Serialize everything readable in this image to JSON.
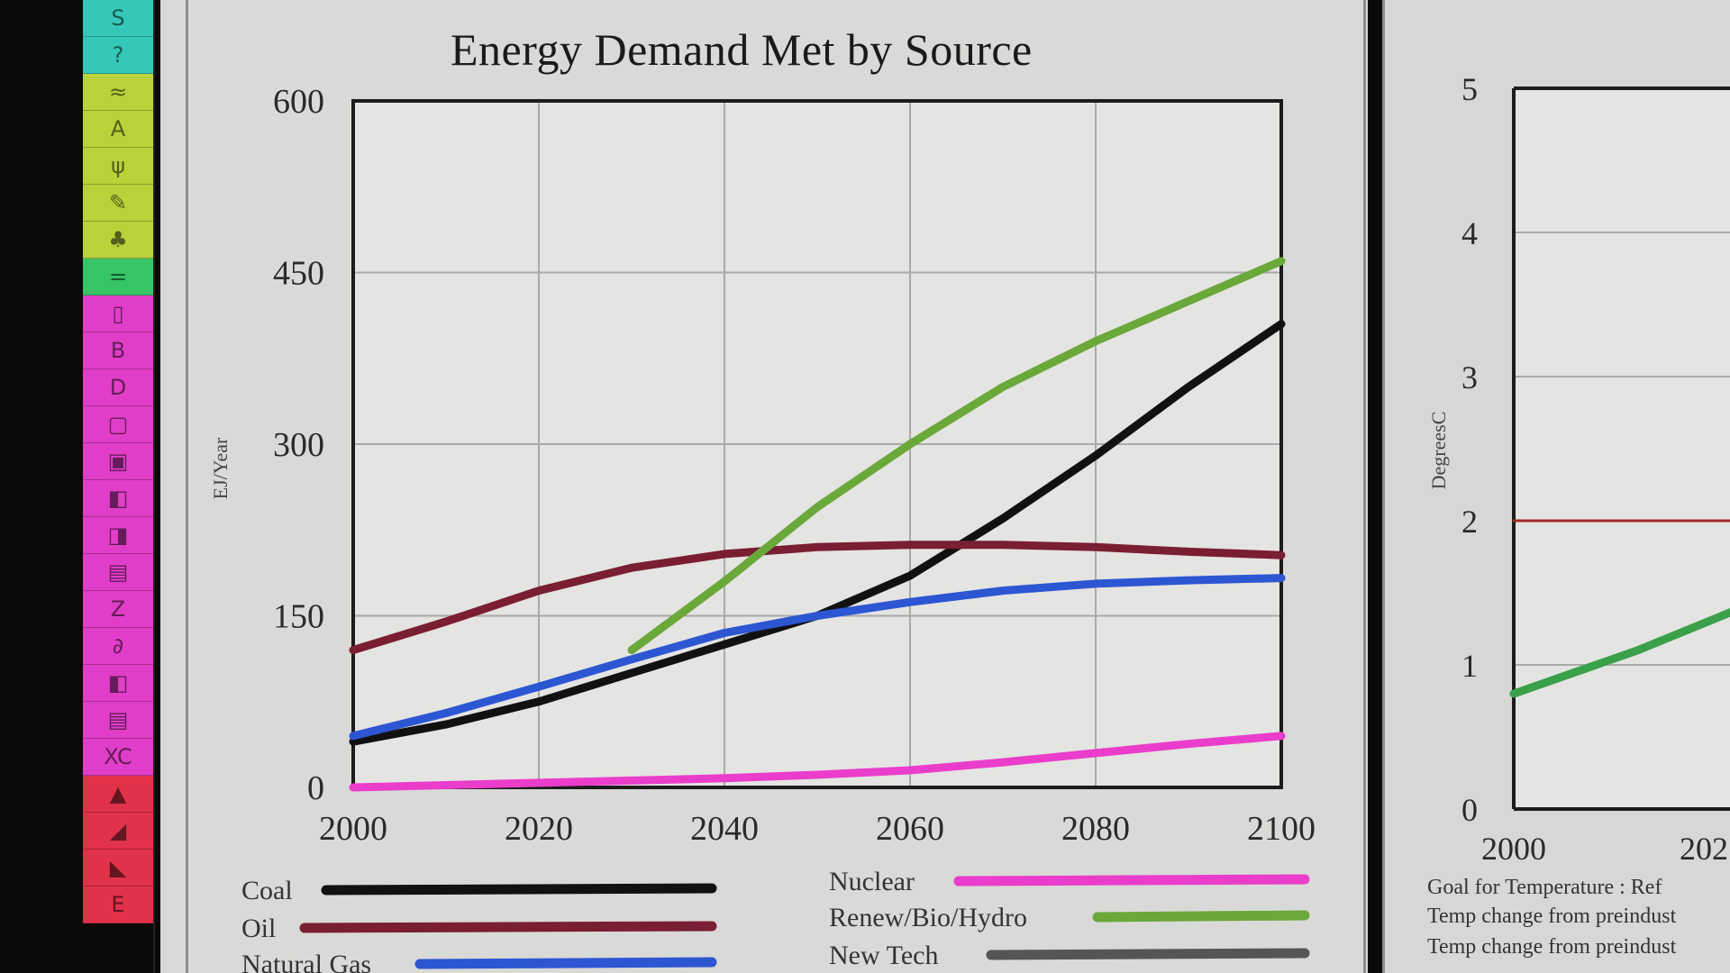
{
  "toolbar": {
    "groups": [
      {
        "color": "#35c8b8",
        "icons": [
          "S",
          "?"
        ]
      },
      {
        "color": "#b8d23a",
        "icons": [
          "≈",
          "A",
          "ψ",
          "✎",
          "♣"
        ]
      },
      {
        "color": "#36c466",
        "icons": [
          "="
        ]
      },
      {
        "color": "#e03ec8",
        "icons": [
          "▯",
          "B",
          "D",
          "▢",
          "▣",
          "◧",
          "◨",
          "▤",
          "Z",
          "∂",
          "◧",
          "▤",
          "XC"
        ]
      },
      {
        "color": "#e2324a",
        "icons": [
          "▲",
          "◢",
          "◣",
          "E"
        ]
      }
    ]
  },
  "chart_data": [
    {
      "type": "line",
      "title": "Energy Demand Met by Source",
      "ylabel": "EJ/Year",
      "xlabel": "",
      "xlim": [
        2000,
        2100
      ],
      "ylim": [
        0,
        600
      ],
      "x_ticks": [
        "2000",
        "2020",
        "2040",
        "2060",
        "2080",
        "2100"
      ],
      "y_ticks": [
        "0",
        "150",
        "300",
        "450",
        "600"
      ],
      "grid": true,
      "legend_position": "bottom",
      "x": [
        2000,
        2010,
        2020,
        2030,
        2040,
        2050,
        2060,
        2070,
        2080,
        2090,
        2100
      ],
      "series": [
        {
          "name": "Coal",
          "color": "#111111",
          "values": [
            40,
            55,
            75,
            100,
            125,
            150,
            185,
            235,
            290,
            350,
            405
          ]
        },
        {
          "name": "Oil",
          "color": "#7a1e32",
          "values": [
            120,
            145,
            172,
            192,
            204,
            210,
            212,
            212,
            210,
            206,
            203
          ]
        },
        {
          "name": "Natural Gas",
          "color": "#2d56d2",
          "values": [
            45,
            65,
            88,
            112,
            135,
            150,
            162,
            172,
            178,
            181,
            183
          ]
        },
        {
          "name": "Nuclear",
          "color": "#ea3dcb",
          "values": [
            0,
            2,
            4,
            6,
            8,
            11,
            15,
            22,
            30,
            38,
            45
          ]
        },
        {
          "name": "Renew/Bio/Hydro",
          "color": "#6aa83a",
          "values": [
            null,
            null,
            null,
            120,
            180,
            245,
            300,
            350,
            390,
            425,
            460
          ]
        },
        {
          "name": "New Tech",
          "color": "#555555",
          "values": [
            null,
            null,
            null,
            null,
            null,
            null,
            null,
            null,
            null,
            null,
            null
          ]
        }
      ]
    },
    {
      "type": "line",
      "title": "",
      "ylabel": "DegreesC",
      "xlabel": "",
      "xlim": [
        2000,
        2020
      ],
      "ylim": [
        0,
        5
      ],
      "x_ticks": [
        "2000",
        "202"
      ],
      "y_ticks": [
        "0",
        "1",
        "2",
        "3",
        "4",
        "5"
      ],
      "grid": true,
      "legend_position": "bottom",
      "x": [
        2000,
        2010,
        2020
      ],
      "series": [
        {
          "name": "Goal for Temperature : Ref",
          "color": "#a02828",
          "values": [
            2,
            2,
            2
          ]
        },
        {
          "name": "Temp change from preindust",
          "color": "#3aa04a",
          "values": [
            0.8,
            1.1,
            1.45
          ]
        },
        {
          "name": "Temp change from preindust",
          "color": "#333333",
          "values": [
            null,
            null,
            null
          ]
        }
      ]
    }
  ]
}
